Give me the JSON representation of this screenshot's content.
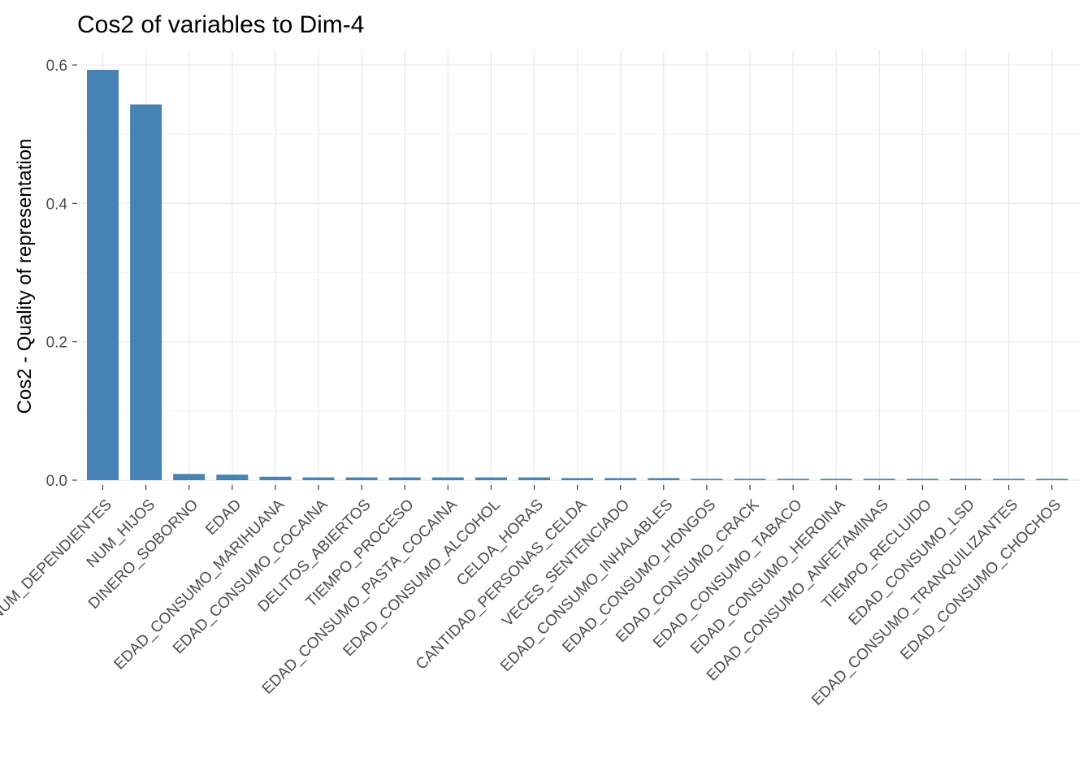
{
  "chart_data": {
    "type": "bar",
    "title": "Cos2 of variables to Dim-4",
    "xlabel": "",
    "ylabel": "Cos2 - Quality of representation",
    "ylim": [
      0,
      0.6
    ],
    "yticks": [
      "0.0",
      "0.2",
      "0.4",
      "0.6"
    ],
    "ytick_values": [
      0,
      0.2,
      0.4,
      0.6
    ],
    "grid": true,
    "bar_color": "#4682B4",
    "categories": [
      "NUM_DEPENDIENTES",
      "NUM_HIJOS",
      "DINERO_SOBORNO",
      "EDAD",
      "EDAD_CONSUMO_MARIHUANA",
      "EDAD_CONSUMO_COCAINA",
      "DELITOS_ABIERTOS",
      "TIEMPO_PROCESO",
      "EDAD_CONSUMO_PASTA_COCAINA",
      "EDAD_CONSUMO_ALCOHOL",
      "CELDA_HORAS",
      "CANTIDAD_PERSONAS_CELDA",
      "VECES_SENTENCIADO",
      "EDAD_CONSUMO_INHALABLES",
      "EDAD_CONSUMO_HONGOS",
      "EDAD_CONSUMO_CRACK",
      "EDAD_CONSUMO_TABACO",
      "EDAD_CONSUMO_HEROINA",
      "EDAD_CONSUMO_ANFETAMINAS",
      "TIEMPO_RECLUIDO",
      "EDAD_CONSUMO_LSD",
      "EDAD_CONSUMO_TRANQUILIZANTES",
      "EDAD_CONSUMO_CHOCHOS"
    ],
    "values": [
      0.593,
      0.543,
      0.009,
      0.008,
      0.005,
      0.004,
      0.004,
      0.004,
      0.004,
      0.004,
      0.004,
      0.003,
      0.003,
      0.003,
      0.002,
      0.002,
      0.002,
      0.002,
      0.002,
      0.002,
      0.002,
      0.002,
      0.002
    ]
  }
}
